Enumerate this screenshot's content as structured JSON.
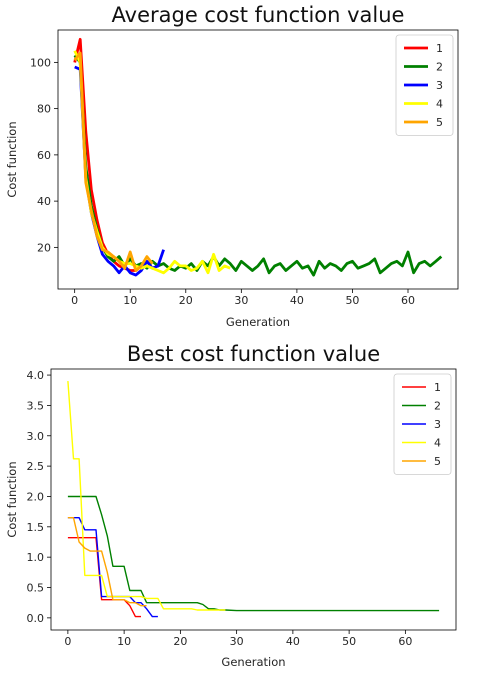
{
  "chart_data": [
    {
      "type": "line",
      "title": "Average cost function value",
      "xlabel": "Generation",
      "ylabel": "Cost function",
      "xlim": [
        -3,
        69
      ],
      "ylim": [
        2,
        114
      ],
      "xticks": [
        0,
        10,
        20,
        30,
        40,
        50,
        60
      ],
      "yticks": [
        20,
        40,
        60,
        80,
        100
      ],
      "legend_position": "top-right",
      "line_weight": "thick",
      "series": [
        {
          "name": "1",
          "color": "#ff0000",
          "x": [
            0,
            1,
            2,
            3,
            4,
            5,
            6,
            7,
            8,
            9,
            10,
            11,
            12
          ],
          "y": [
            100,
            110,
            70,
            45,
            32,
            22,
            17,
            14,
            12,
            11,
            10,
            10,
            12
          ]
        },
        {
          "name": "2",
          "color": "#008000",
          "x": [
            0,
            1,
            2,
            3,
            4,
            5,
            6,
            7,
            8,
            9,
            10,
            11,
            12,
            13,
            14,
            15,
            16,
            17,
            18,
            19,
            20,
            21,
            22,
            23,
            24,
            25,
            26,
            27,
            28,
            29,
            30,
            31,
            32,
            33,
            34,
            35,
            36,
            37,
            38,
            39,
            40,
            41,
            42,
            43,
            44,
            45,
            46,
            47,
            48,
            49,
            50,
            51,
            52,
            53,
            54,
            55,
            56,
            57,
            58,
            59,
            60,
            61,
            62,
            63,
            64,
            65,
            66
          ],
          "y": [
            103,
            100,
            55,
            38,
            28,
            20,
            16,
            14,
            16,
            12,
            15,
            12,
            13,
            11,
            14,
            12,
            13,
            11,
            10,
            12,
            11,
            13,
            10,
            14,
            12,
            16,
            12,
            15,
            13,
            10,
            14,
            12,
            10,
            12,
            15,
            9,
            12,
            13,
            10,
            12,
            14,
            11,
            12,
            8,
            14,
            11,
            13,
            12,
            10,
            13,
            14,
            11,
            12,
            13,
            15,
            9,
            11,
            13,
            14,
            12,
            18,
            9,
            13,
            14,
            12,
            14,
            16
          ]
        },
        {
          "name": "3",
          "color": "#0000ff",
          "x": [
            0,
            1,
            2,
            3,
            4,
            5,
            6,
            7,
            8,
            9,
            10,
            11,
            12,
            13,
            14,
            15,
            16
          ],
          "y": [
            98,
            97,
            50,
            35,
            25,
            17,
            14,
            12,
            9,
            12,
            9,
            8,
            10,
            14,
            11,
            12,
            19
          ]
        },
        {
          "name": "4",
          "color": "#ffff00",
          "x": [
            0,
            1,
            2,
            3,
            4,
            5,
            6,
            7,
            8,
            9,
            10,
            11,
            12,
            13,
            14,
            15,
            16,
            17,
            18,
            19,
            20,
            21,
            22,
            23,
            24,
            25,
            26,
            27,
            28
          ],
          "y": [
            105,
            100,
            50,
            35,
            27,
            20,
            17,
            16,
            14,
            13,
            13,
            12,
            11,
            12,
            11,
            10,
            9,
            11,
            14,
            12,
            12,
            10,
            11,
            14,
            9,
            17,
            10,
            12,
            11
          ]
        },
        {
          "name": "5",
          "color": "#ffa500",
          "x": [
            0,
            1,
            2,
            3,
            4,
            5,
            6,
            7,
            8,
            9,
            10,
            11,
            12,
            13,
            14
          ],
          "y": [
            101,
            104,
            48,
            36,
            25,
            19,
            18,
            16,
            14,
            11,
            18,
            10,
            12,
            16,
            13
          ]
        }
      ]
    },
    {
      "type": "line",
      "title": "Best cost function value",
      "xlabel": "Generation",
      "ylabel": "Cost function",
      "xlim": [
        -3,
        69
      ],
      "ylim": [
        -0.2,
        4.1
      ],
      "xticks": [
        0,
        10,
        20,
        30,
        40,
        50,
        60
      ],
      "yticks": [
        0.0,
        0.5,
        1.0,
        1.5,
        2.0,
        2.5,
        3.0,
        3.5,
        4.0
      ],
      "ytick_labels": [
        "0.0",
        "0.5",
        "1.0",
        "1.5",
        "2.0",
        "2.5",
        "3.0",
        "3.5",
        "4.0"
      ],
      "legend_position": "top-right",
      "line_weight": "thin",
      "series": [
        {
          "name": "1",
          "color": "#ff0000",
          "x": [
            0,
            1,
            2,
            3,
            4,
            5,
            6,
            7,
            8,
            9,
            10,
            11,
            12,
            13
          ],
          "y": [
            1.32,
            1.32,
            1.32,
            1.32,
            1.32,
            1.32,
            0.3,
            0.3,
            0.3,
            0.3,
            0.3,
            0.2,
            0.02,
            0.02
          ]
        },
        {
          "name": "2",
          "color": "#008000",
          "x": [
            0,
            1,
            2,
            3,
            4,
            5,
            6,
            7,
            8,
            9,
            10,
            11,
            12,
            13,
            14,
            15,
            16,
            17,
            18,
            19,
            20,
            21,
            22,
            23,
            24,
            25,
            26,
            27,
            28,
            30,
            40,
            50,
            66
          ],
          "y": [
            2.0,
            2.0,
            2.0,
            2.0,
            2.0,
            2.0,
            1.7,
            1.35,
            0.85,
            0.85,
            0.85,
            0.45,
            0.45,
            0.45,
            0.25,
            0.25,
            0.25,
            0.25,
            0.25,
            0.25,
            0.25,
            0.25,
            0.25,
            0.25,
            0.22,
            0.15,
            0.15,
            0.13,
            0.13,
            0.12,
            0.12,
            0.12,
            0.12
          ]
        },
        {
          "name": "3",
          "color": "#0000ff",
          "x": [
            0,
            1,
            2,
            3,
            4,
            5,
            6,
            7,
            8,
            9,
            10,
            11,
            12,
            13,
            14,
            15,
            16
          ],
          "y": [
            1.65,
            1.65,
            1.65,
            1.45,
            1.45,
            1.45,
            0.35,
            0.35,
            0.35,
            0.35,
            0.35,
            0.35,
            0.25,
            0.25,
            0.15,
            0.02,
            0.02
          ]
        },
        {
          "name": "4",
          "color": "#ffff00",
          "x": [
            0,
            1,
            2,
            3,
            4,
            5,
            6,
            7,
            8,
            9,
            10,
            11,
            12,
            13,
            14,
            15,
            16,
            17,
            18,
            19,
            20,
            21,
            22,
            23,
            24,
            25,
            26,
            27,
            28
          ],
          "y": [
            3.9,
            2.62,
            2.62,
            0.7,
            0.7,
            0.7,
            0.7,
            0.35,
            0.35,
            0.35,
            0.35,
            0.35,
            0.35,
            0.35,
            0.32,
            0.32,
            0.32,
            0.15,
            0.15,
            0.15,
            0.15,
            0.15,
            0.15,
            0.13,
            0.13,
            0.13,
            0.13,
            0.13,
            0.13
          ]
        },
        {
          "name": "5",
          "color": "#ffa500",
          "x": [
            0,
            1,
            2,
            3,
            4,
            5,
            6,
            7,
            8,
            9,
            10,
            11,
            12,
            13,
            14
          ],
          "y": [
            1.65,
            1.65,
            1.25,
            1.15,
            1.1,
            1.1,
            1.1,
            0.75,
            0.3,
            0.3,
            0.3,
            0.25,
            0.25,
            0.2,
            0.2
          ]
        }
      ]
    }
  ]
}
